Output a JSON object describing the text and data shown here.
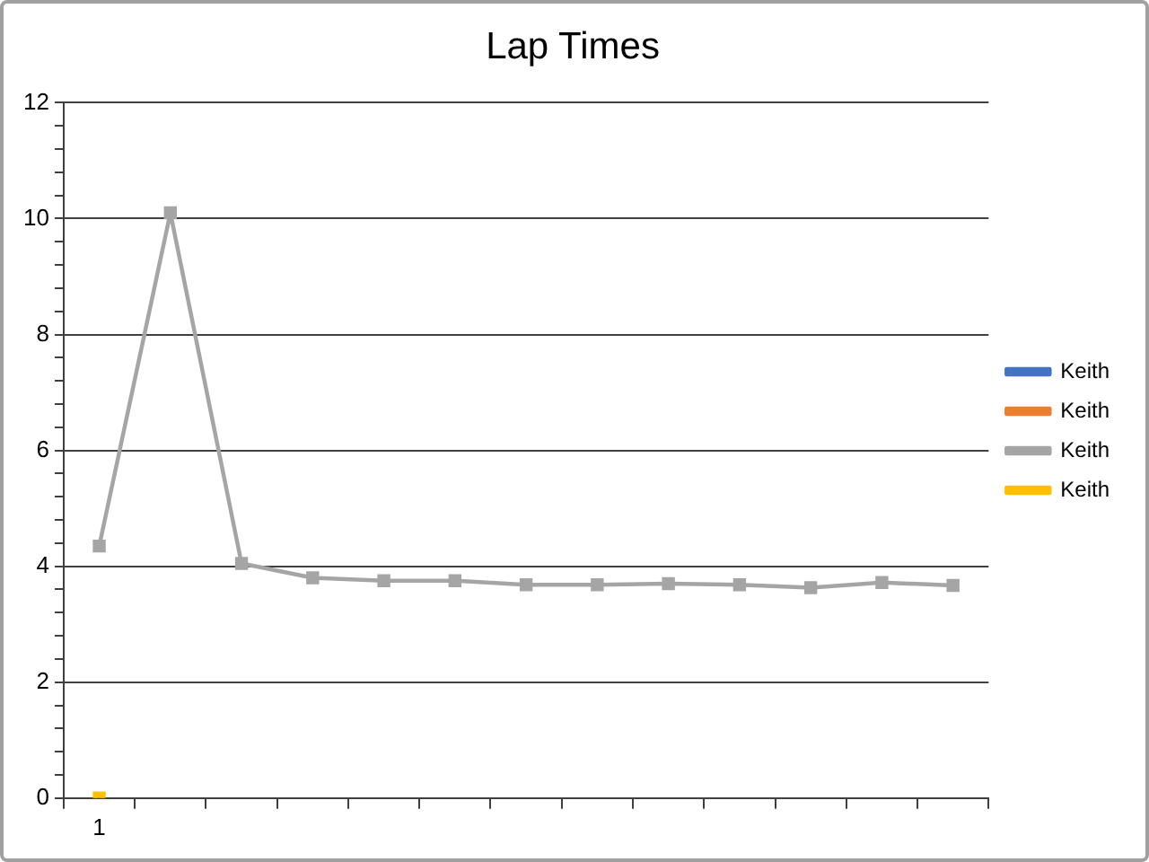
{
  "chart_data": {
    "type": "line",
    "title": "Lap Times",
    "categories": [
      "1",
      null,
      null,
      null,
      null,
      null,
      null,
      null,
      null,
      null,
      null,
      null,
      null
    ],
    "series": [
      {
        "name": "Keith",
        "color": "#4472c4",
        "values": [
          null,
          null,
          null,
          null,
          null,
          null,
          null,
          null,
          null,
          null,
          null,
          null,
          null
        ]
      },
      {
        "name": "Keith",
        "color": "#ed7d31",
        "values": [
          null,
          null,
          null,
          null,
          null,
          null,
          null,
          null,
          null,
          null,
          null,
          null,
          null
        ]
      },
      {
        "name": "Keith",
        "color": "#a5a5a5",
        "values": [
          4.35,
          10.1,
          4.05,
          3.8,
          3.75,
          3.75,
          3.68,
          3.68,
          3.7,
          3.68,
          3.63,
          3.72,
          3.67
        ]
      },
      {
        "name": "Keith",
        "color": "#ffc000",
        "values": [
          0,
          null,
          null,
          null,
          null,
          null,
          null,
          null,
          null,
          null,
          null,
          null,
          null
        ]
      }
    ],
    "ylim": [
      0,
      12
    ],
    "yticks": [
      0,
      {
        "value": 0.4,
        "label": null
      },
      {
        "value": 0.8,
        "label": null
      },
      {
        "value": 1.2,
        "label": null
      },
      {
        "value": 1.6,
        "label": null
      },
      2,
      {
        "value": 2.4,
        "label": null
      },
      {
        "value": 2.8,
        "label": null
      },
      {
        "value": 3.2,
        "label": null
      },
      {
        "value": 3.6,
        "label": null
      },
      4,
      {
        "value": 4.4,
        "label": null
      },
      {
        "value": 4.8,
        "label": null
      },
      {
        "value": 5.2,
        "label": null
      },
      {
        "value": 5.6,
        "label": null
      },
      6,
      {
        "value": 6.4,
        "label": null
      },
      {
        "value": 6.8,
        "label": null
      },
      {
        "value": 7.2,
        "label": null
      },
      {
        "value": 7.6,
        "label": null
      },
      8,
      {
        "value": 8.4,
        "label": null
      },
      {
        "value": 8.8,
        "label": null
      },
      {
        "value": 9.2,
        "label": null
      },
      {
        "value": 9.6,
        "label": null
      },
      10,
      {
        "value": 10.4,
        "label": null
      },
      {
        "value": 10.8,
        "label": null
      },
      {
        "value": 11.2,
        "label": null
      },
      {
        "value": 11.6,
        "label": null
      },
      12
    ],
    "grid": "y",
    "legend": "right",
    "marker": "square"
  }
}
